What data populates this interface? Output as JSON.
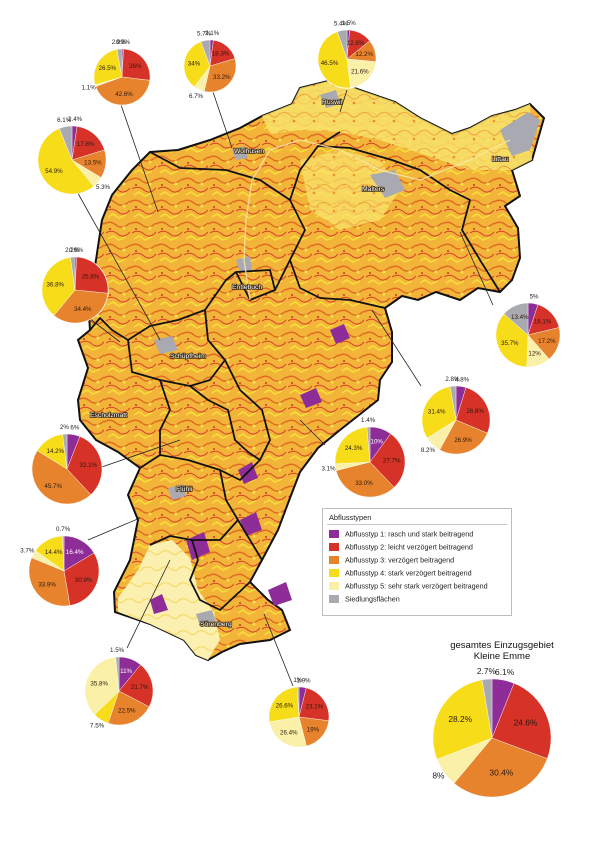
{
  "colors": {
    "typ1": "#8e2d98",
    "typ2": "#d63228",
    "typ3": "#e8832d",
    "typ4": "#f7dc1a",
    "typ5": "#fbf0a8",
    "siedlung": "#a9a9b1"
  },
  "legend": {
    "title": "Abflusstypen",
    "items": [
      {
        "key": "typ1",
        "label": "Abflusstyp 1: rasch und stark beitragend"
      },
      {
        "key": "typ2",
        "label": "Abflusstyp 2: leicht verzögert beitragend"
      },
      {
        "key": "typ3",
        "label": "Abflusstyp 3: verzögert beitragend"
      },
      {
        "key": "typ4",
        "label": "Abflusstyp 4: stark verzögert beitragend"
      },
      {
        "key": "typ5",
        "label": "Abflusstyp 5: sehr stark verzögert beitragend"
      },
      {
        "key": "siedlung",
        "label": "Siedlungsflächen"
      }
    ]
  },
  "places": [
    {
      "name": "Ruswil"
    },
    {
      "name": "Wolhusen"
    },
    {
      "name": "Littau"
    },
    {
      "name": "Malters"
    },
    {
      "name": "Entlebuch"
    },
    {
      "name": "Schüpfheim"
    },
    {
      "name": "Escholzmatt"
    },
    {
      "name": "Flühli"
    },
    {
      "name": "Sörenberg"
    }
  ],
  "total": {
    "title_line1": "gesamtes Einzugsgebiet",
    "title_line2": "Kleine Emme"
  },
  "chart_data": [
    {
      "type": "pie",
      "region": "1",
      "values": {
        "typ1": 0.9,
        "typ2": 26,
        "typ3": 42.6,
        "typ4": 26.5,
        "typ5": 1.1,
        "siedlung": 2.9
      },
      "labels": {
        "typ1": "0.9%",
        "typ2": "26%",
        "typ3": "42.6%",
        "typ4": "26.5%",
        "typ5": "1.1%",
        "siedlung": "2.9%"
      }
    },
    {
      "type": "pie",
      "region": "2",
      "values": {
        "typ1": 2.1,
        "typ2": 18.3,
        "typ3": 33.2,
        "typ4": 34,
        "typ5": 6.7,
        "siedlung": 5.7
      },
      "labels": {
        "typ1": "2.1%",
        "typ2": "18.3%",
        "typ3": "33.2%",
        "typ4": "34%",
        "typ5": "6.7%",
        "siedlung": "5.7%"
      }
    },
    {
      "type": "pie",
      "region": "3",
      "values": {
        "typ1": 1.5,
        "typ2": 12.8,
        "typ3": 12.2,
        "typ4": 46.5,
        "typ5": 21.6,
        "siedlung": 5.4
      },
      "labels": {
        "typ1": "1.5%",
        "typ2": "12.8%",
        "typ3": "12.2%",
        "typ4": "46.5%",
        "typ5": "21.6%",
        "siedlung": "5.4%"
      }
    },
    {
      "type": "pie",
      "region": "4",
      "values": {
        "typ1": 2.4,
        "typ2": 17.8,
        "typ3": 13.5,
        "typ4": 54.9,
        "typ5": 5.3,
        "siedlung": 6.1
      },
      "labels": {
        "typ1": "2.4%",
        "typ2": "17.8%",
        "typ3": "13.5%",
        "typ4": "54.9%",
        "typ5": "5.3%",
        "siedlung": "6.1%"
      }
    },
    {
      "type": "pie",
      "region": "5",
      "values": {
        "typ1": 0.8,
        "typ2": 25.8,
        "typ3": 34.4,
        "typ4": 36.8,
        "typ5": 0.0,
        "siedlung": 2.2
      },
      "labels": {
        "typ1": "0.8%",
        "typ2": "25.8%",
        "typ3": "34.4%",
        "typ4": "36.8%",
        "typ5": "",
        "siedlung": "2.2%"
      }
    },
    {
      "type": "pie",
      "region": "6",
      "values": {
        "typ1": 5,
        "typ2": 16.1,
        "typ3": 17.2,
        "typ4": 35.7,
        "typ5": 12,
        "siedlung": 13.4
      },
      "labels": {
        "typ1": "5%",
        "typ2": "16.1%",
        "typ3": "17.2%",
        "typ4": "35.7%",
        "typ5": "12%",
        "siedlung": "13.4%"
      }
    },
    {
      "type": "pie",
      "region": "7",
      "values": {
        "typ1": 4.8,
        "typ2": 26.8,
        "typ3": 26.9,
        "typ4": 31.4,
        "typ5": 8.2,
        "siedlung": 2.8
      },
      "labels": {
        "typ1": "4.8%",
        "typ2": "26.8%",
        "typ3": "26.9%",
        "typ4": "31.4%",
        "typ5": "8.2%",
        "siedlung": "2.8%"
      }
    },
    {
      "type": "pie",
      "region": "8",
      "values": {
        "typ1": 10,
        "typ2": 27.7,
        "typ3": 33,
        "typ4": 24.3,
        "typ5": 3.1,
        "siedlung": 1.4
      },
      "labels": {
        "typ1": "10%",
        "typ2": "27.7%",
        "typ3": "33.0%",
        "typ4": "24.3%",
        "typ5": "3.1%",
        "siedlung": "1.4%"
      }
    },
    {
      "type": "pie",
      "region": "9",
      "values": {
        "typ1": 6,
        "typ2": 32.1,
        "typ3": 45.7,
        "typ4": 14.2,
        "typ5": 0.0,
        "siedlung": 2
      },
      "labels": {
        "typ1": "6%",
        "typ2": "32.1%",
        "typ3": "45.7%",
        "typ4": "14.2%",
        "typ5": "",
        "siedlung": "2%"
      }
    },
    {
      "type": "pie",
      "region": "10",
      "values": {
        "typ1": 16.4,
        "typ2": 30.9,
        "typ3": 33.9,
        "typ4": 14.4,
        "typ5": 3.7,
        "siedlung": 0.7
      },
      "labels": {
        "typ1": "16.4%",
        "typ2": "30.9%",
        "typ3": "33.9%",
        "typ4": "14.4%",
        "typ5": "3.7%",
        "siedlung": "0.7%"
      }
    },
    {
      "type": "pie",
      "region": "11",
      "values": {
        "typ1": 11,
        "typ2": 21.7,
        "typ3": 22.5,
        "typ4": 0.0,
        "typ5": 35.8,
        "siedlung": 1.5,
        "typ4b": 7.5
      },
      "labels": {
        "typ1": "11%",
        "typ2": "21.7%",
        "typ3": "22.5%",
        "typ4": "",
        "typ5": "35.8%",
        "siedlung": "1.5%",
        "typ4b": "7.5%"
      }
    },
    {
      "type": "pie",
      "region": "12",
      "values": {
        "typ1": 3.9,
        "typ2": 23.1,
        "typ3": 19,
        "typ4": 26.6,
        "typ5": 26.4,
        "siedlung": 1
      },
      "labels": {
        "typ1": "3.9%",
        "typ2": "23.1%",
        "typ3": "19%",
        "typ4": "26.6%",
        "typ5": "26.4%",
        "siedlung": "1%"
      }
    },
    {
      "type": "pie",
      "region": "total",
      "values": {
        "typ1": 6.1,
        "typ2": 24.6,
        "typ3": 30.4,
        "typ4": 28.2,
        "typ5": 8,
        "siedlung": 2.7
      },
      "labels": {
        "typ1": "6.1%",
        "typ2": "24.6%",
        "typ3": "30.4%",
        "typ4": "28.2%",
        "typ5": "8%",
        "siedlung": "2.7%"
      }
    }
  ]
}
